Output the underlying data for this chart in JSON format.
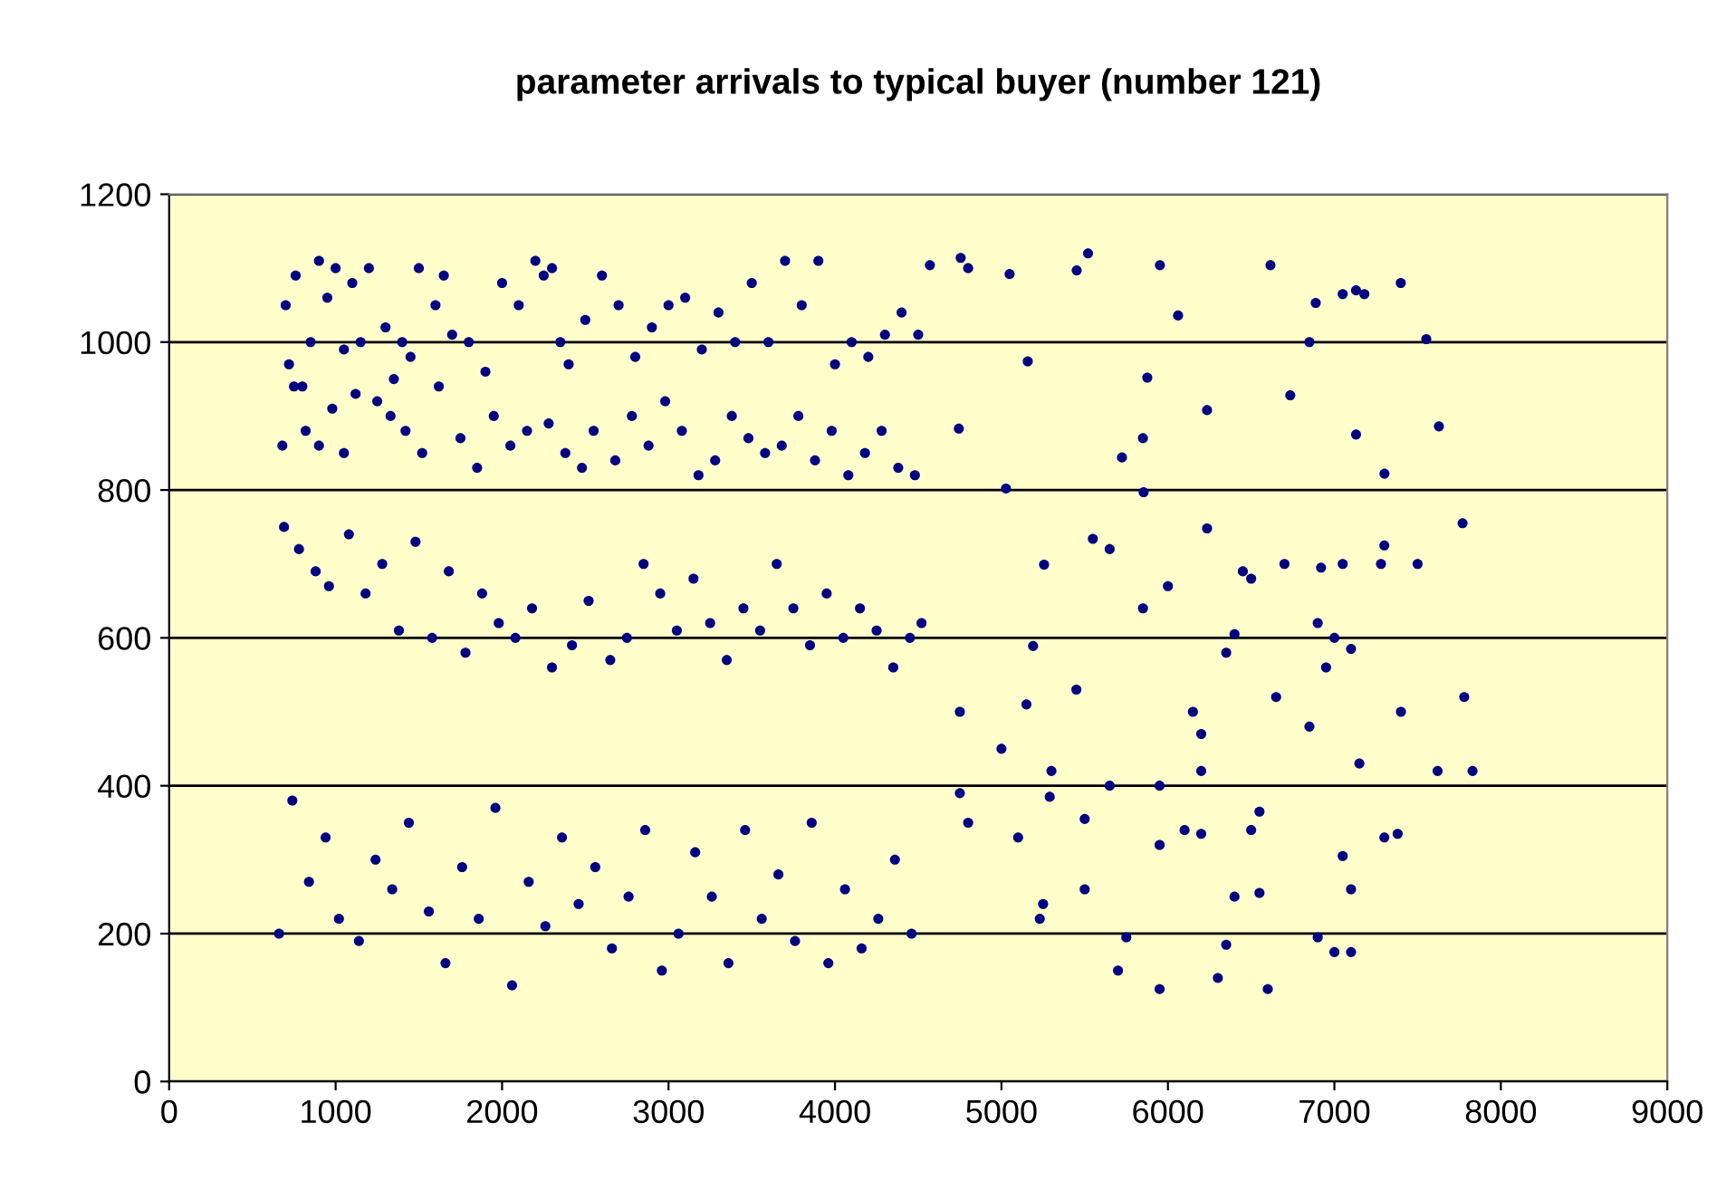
{
  "chart_data": {
    "type": "scatter",
    "title": "parameter arrivals to typical buyer (number 121)",
    "xlim": [
      0,
      9000
    ],
    "xticks": [
      0,
      1000,
      2000,
      3000,
      4000,
      5000,
      6000,
      7000,
      8000,
      9000
    ],
    "ylim": [
      0,
      1200
    ],
    "yticks": [
      0,
      200,
      400,
      600,
      800,
      1000,
      1200
    ],
    "grid": "y",
    "legend": false,
    "marker": "circle",
    "series": [
      {
        "color": "#000080",
        "x": [
          4570,
          4755,
          4800,
          5049,
          5452,
          5520,
          5952,
          6061,
          6616,
          6888,
          7050,
          7130,
          7180,
          7399,
          7552,
          6850,
          5158,
          4744,
          5876,
          6235,
          6735,
          7301,
          7628,
          7130,
          5027,
          5724,
          5854,
          5850,
          5650,
          5256,
          5549,
          6235,
          6450,
          6500,
          6700,
          6920,
          7050,
          7280,
          7300,
          7500,
          7770,
          5190,
          5850,
          6000,
          6400,
          6900,
          7000,
          7100,
          6150,
          6200,
          7150,
          7400,
          7620,
          7780,
          7830,
          4750,
          4750,
          5000,
          5150,
          5300,
          5290,
          5650,
          5450,
          5500,
          5950,
          5950,
          6100,
          6200,
          6350,
          6500,
          6550,
          6650,
          6850,
          6950,
          7050,
          7100,
          7300,
          7380,
          5100,
          5250,
          5230,
          5500,
          5700,
          5750,
          5950,
          6200,
          6300,
          6350,
          6400,
          6550,
          6600,
          6900,
          7000,
          7100,
          4800,
          700,
          720,
          760,
          800,
          850,
          900,
          950,
          1000,
          1050,
          1100,
          1150,
          1200,
          1300,
          1350,
          1400,
          1450,
          1500,
          1600,
          1650,
          1700,
          1800,
          1900,
          2000,
          2100,
          2200,
          2250,
          2300,
          2350,
          2400,
          2500,
          2600,
          2700,
          2800,
          2900,
          3000,
          3100,
          3200,
          3300,
          3400,
          3500,
          3600,
          3700,
          3800,
          3900,
          4000,
          4100,
          4200,
          4300,
          4400,
          4500,
          680,
          750,
          820,
          900,
          980,
          1050,
          1120,
          1250,
          1330,
          1420,
          1520,
          1620,
          1750,
          1850,
          1950,
          2050,
          2150,
          2280,
          2380,
          2480,
          2550,
          2680,
          2780,
          2880,
          2980,
          3080,
          3180,
          3280,
          3380,
          3480,
          3580,
          3680,
          3780,
          3880,
          3980,
          4080,
          4180,
          4280,
          4380,
          4480,
          690,
          780,
          880,
          960,
          1080,
          1180,
          1280,
          1380,
          1480,
          1580,
          1680,
          1780,
          1880,
          1980,
          2080,
          2180,
          2300,
          2420,
          2520,
          2650,
          2750,
          2850,
          2950,
          3050,
          3150,
          3250,
          3350,
          3450,
          3550,
          3650,
          3750,
          3850,
          3950,
          4050,
          4150,
          4250,
          4350,
          4450,
          4520,
          660,
          740,
          840,
          940,
          1020,
          1140,
          1240,
          1340,
          1440,
          1560,
          1660,
          1760,
          1860,
          1960,
          2060,
          2160,
          2260,
          2360,
          2460,
          2560,
          2660,
          2760,
          2860,
          2960,
          3060,
          3160,
          3260,
          3360,
          3460,
          3560,
          3660,
          3760,
          3860,
          3960,
          4060,
          4160,
          4260,
          4360,
          4460
        ],
        "values": [
          1104,
          1114,
          1100,
          1092,
          1097,
          1120,
          1104,
          1036,
          1104,
          1053,
          1065,
          1070,
          1065,
          1080,
          1004,
          1000,
          974,
          883,
          952,
          908,
          928,
          822,
          886,
          875,
          802,
          844,
          797,
          870,
          720,
          699,
          734,
          748,
          690,
          680,
          700,
          695,
          700,
          700,
          725,
          700,
          755,
          589,
          640,
          670,
          605,
          620,
          600,
          585,
          500,
          470,
          430,
          500,
          420,
          520,
          420,
          500,
          390,
          450,
          510,
          420,
          385,
          400,
          530,
          355,
          400,
          320,
          340,
          420,
          580,
          340,
          365,
          520,
          480,
          560,
          305,
          260,
          330,
          335,
          330,
          240,
          220,
          260,
          150,
          195,
          125,
          335,
          140,
          185,
          250,
          255,
          125,
          195,
          175,
          175,
          350,
          1050,
          970,
          1090,
          940,
          1000,
          1110,
          1060,
          1100,
          990,
          1080,
          1000,
          1100,
          1020,
          950,
          1000,
          980,
          1100,
          1050,
          1090,
          1010,
          1000,
          960,
          1080,
          1050,
          1110,
          1090,
          1100,
          1000,
          970,
          1030,
          1090,
          1050,
          980,
          1020,
          1050,
          1060,
          990,
          1040,
          1000,
          1080,
          1000,
          1110,
          1050,
          1110,
          970,
          1000,
          980,
          1010,
          1040,
          1010,
          860,
          940,
          880,
          860,
          910,
          850,
          930,
          920,
          900,
          880,
          850,
          940,
          870,
          830,
          900,
          860,
          880,
          890,
          850,
          830,
          880,
          840,
          900,
          860,
          920,
          880,
          820,
          840,
          900,
          870,
          850,
          860,
          900,
          840,
          880,
          820,
          850,
          880,
          830,
          820,
          750,
          720,
          690,
          670,
          740,
          660,
          700,
          610,
          730,
          600,
          690,
          580,
          660,
          620,
          600,
          640,
          560,
          590,
          650,
          570,
          600,
          700,
          660,
          610,
          680,
          620,
          570,
          640,
          610,
          700,
          640,
          590,
          660,
          600,
          640,
          610,
          560,
          600,
          620,
          200,
          380,
          270,
          330,
          220,
          190,
          300,
          260,
          350,
          230,
          160,
          290,
          220,
          370,
          130,
          270,
          210,
          330,
          240,
          290,
          180,
          250,
          340,
          150,
          200,
          310,
          250,
          160,
          340,
          220,
          280,
          190,
          350,
          160,
          260,
          180,
          220,
          300,
          200
        ]
      }
    ]
  }
}
